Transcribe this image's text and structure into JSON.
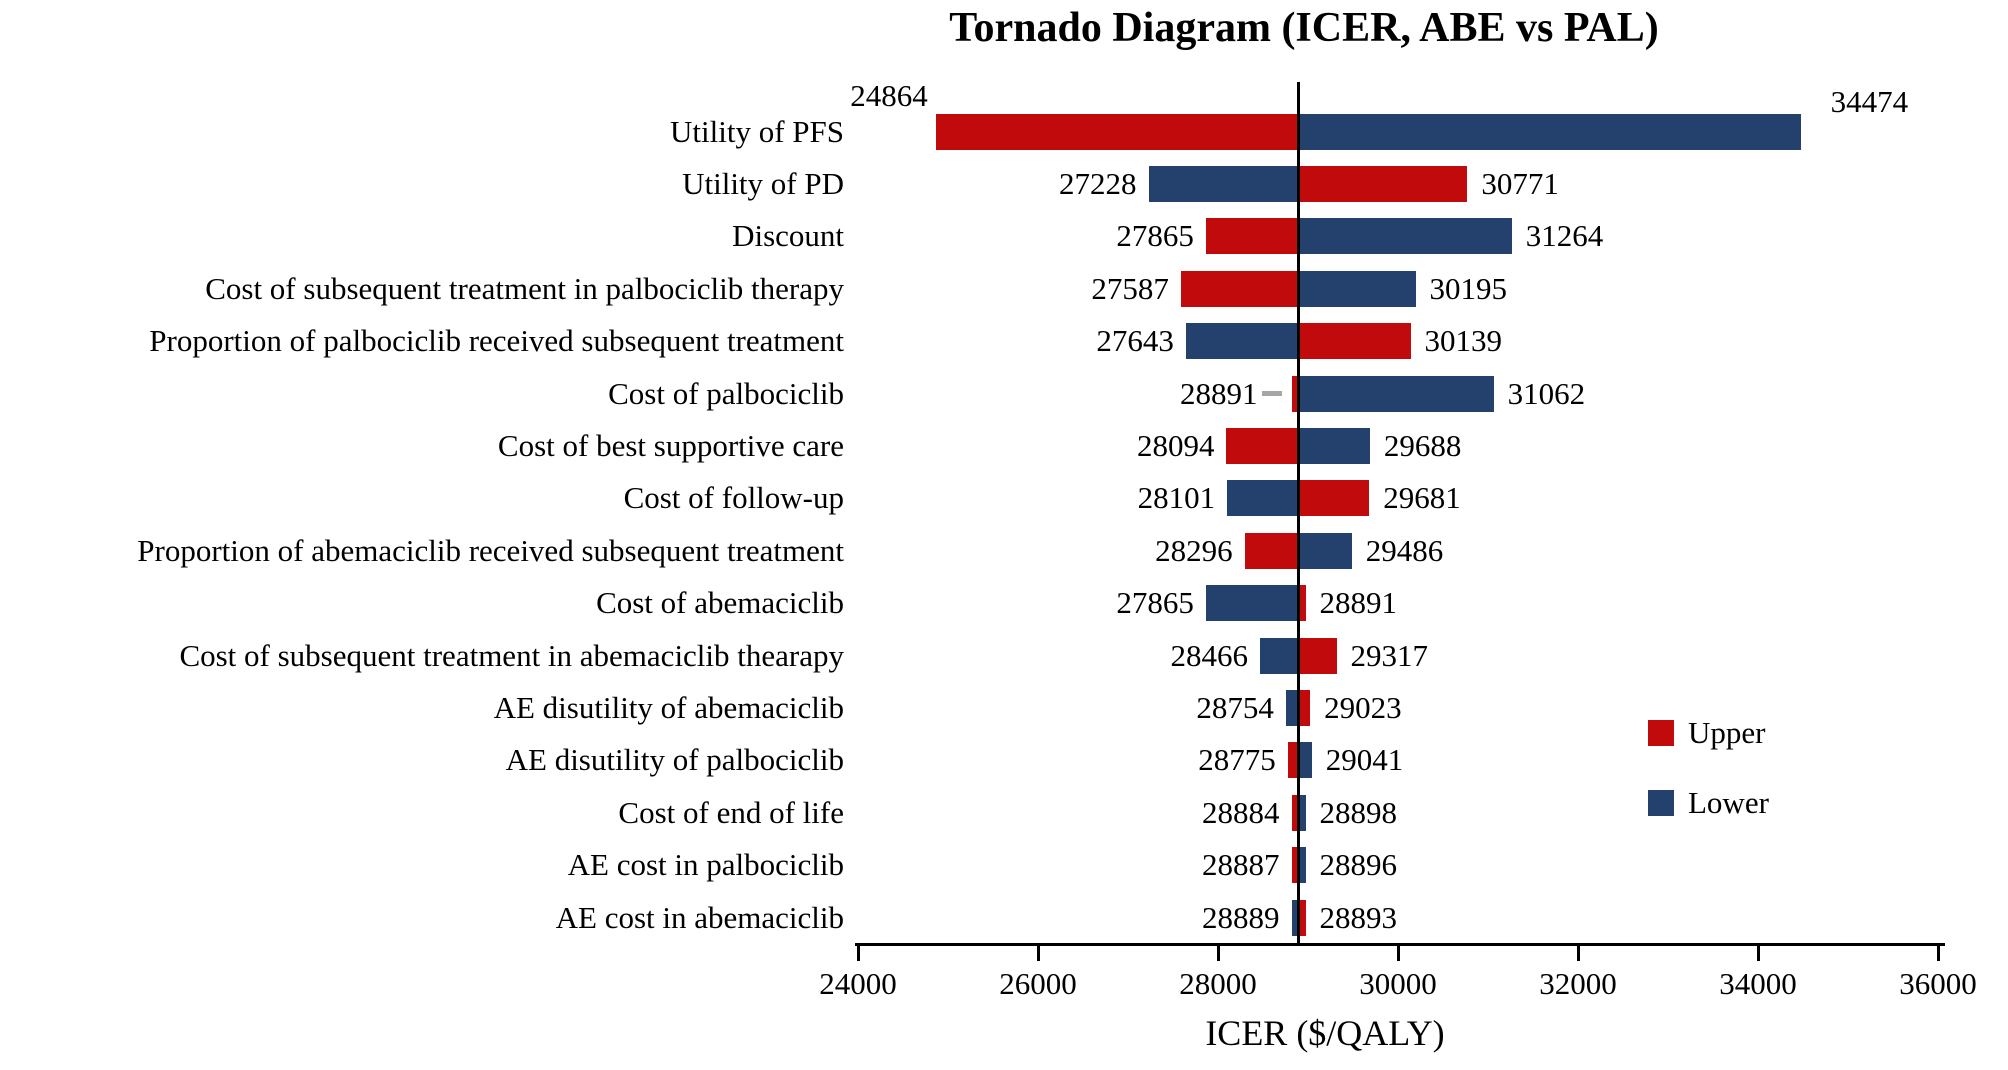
{
  "chart_data": {
    "type": "bar",
    "subtype": "tornado",
    "title": "Tornado Diagram (ICER, ABE vs PAL)",
    "xlabel": "ICER ($/QALY)",
    "base_value": 28891,
    "xlim": [
      24000,
      36000
    ],
    "xticks": [
      24000,
      26000,
      28000,
      30000,
      32000,
      34000,
      36000
    ],
    "grid": false,
    "legend_position": "right",
    "categories": [
      "Utility of PFS",
      "Utility of PD",
      "Discount",
      "Cost of subsequent treatment in palbociclib therapy",
      "Proportion of palbociclib received subsequent treatment",
      "Cost of palbociclib",
      "Cost of best supportive care",
      "Cost of follow-up",
      "Proportion of abemaciclib received subsequent treatment",
      "Cost of abemaciclib",
      "Cost of subsequent treatment in abemaciclib thearapy",
      "AE disutility of abemaciclib",
      "AE disutility of palbociclib",
      "Cost of end of life",
      "AE cost in palbociclib",
      "AE cost in abemaciclib"
    ],
    "series": [
      {
        "name": "Upper",
        "color": "#C00A0C",
        "values": [
          24864,
          30771,
          27865,
          27587,
          30139,
          28891,
          28094,
          29681,
          28296,
          28891,
          29317,
          29023,
          28775,
          28884,
          28887,
          28893
        ]
      },
      {
        "name": "Lower",
        "color": "#24406D",
        "values": [
          34474,
          27228,
          31264,
          30195,
          27643,
          31062,
          29688,
          28101,
          29486,
          27865,
          28466,
          28754,
          29041,
          28898,
          28896,
          28889
        ]
      }
    ],
    "annotations": {
      "leader_dash_row": 5
    },
    "axis_color": "#000000",
    "baseline_color": "#000000"
  }
}
